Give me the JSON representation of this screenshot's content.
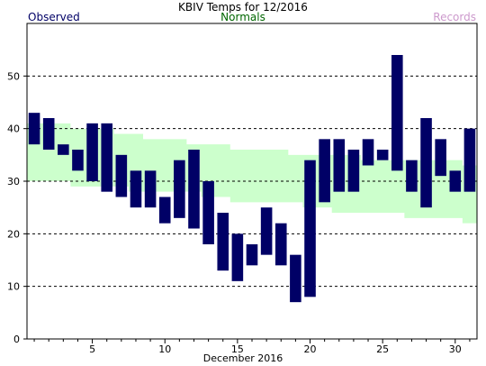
{
  "chart_data": {
    "type": "bar",
    "title": "KBIV Temps for 12/2016",
    "xlabel": "December 2016",
    "ylabel": "",
    "legend": [
      {
        "name": "Observed",
        "color": "#000066"
      },
      {
        "name": "Normals",
        "color": "#006600"
      },
      {
        "name": "Records",
        "color": "#cc99cc"
      }
    ],
    "xlim": [
      0.5,
      31.5
    ],
    "ylim": [
      0,
      60
    ],
    "xticks": [
      5,
      10,
      15,
      20,
      25,
      30
    ],
    "yticks": [
      0,
      10,
      20,
      30,
      40,
      50
    ],
    "grid": true,
    "days": [
      1,
      2,
      3,
      4,
      5,
      6,
      7,
      8,
      9,
      10,
      11,
      12,
      13,
      14,
      15,
      16,
      17,
      18,
      19,
      20,
      21,
      22,
      23,
      24,
      25,
      26,
      27,
      28,
      29,
      30,
      31
    ],
    "observed_high": [
      43,
      42,
      37,
      36,
      41,
      41,
      35,
      32,
      32,
      27,
      34,
      36,
      30,
      24,
      20,
      18,
      25,
      22,
      16,
      34,
      38,
      38,
      36,
      38,
      36,
      54,
      34,
      42,
      38,
      32,
      40
    ],
    "observed_low": [
      37,
      36,
      35,
      32,
      30,
      28,
      27,
      25,
      25,
      22,
      23,
      21,
      18,
      13,
      11,
      14,
      16,
      14,
      7,
      8,
      26,
      28,
      28,
      33,
      34,
      32,
      28,
      25,
      31,
      28,
      28
    ],
    "normal_high": [
      41,
      41,
      41,
      40,
      40,
      40,
      39,
      39,
      38,
      38,
      38,
      37,
      37,
      37,
      36,
      36,
      36,
      36,
      35,
      35,
      35,
      35,
      35,
      34,
      34,
      34,
      34,
      34,
      34,
      34,
      33
    ],
    "normal_low": [
      30,
      30,
      30,
      29,
      29,
      29,
      29,
      28,
      28,
      28,
      28,
      28,
      27,
      27,
      26,
      26,
      26,
      26,
      26,
      25,
      25,
      24,
      24,
      24,
      24,
      24,
      23,
      23,
      23,
      23,
      22
    ],
    "colors": {
      "observed": "#000066",
      "normals": "#ccffcc",
      "grid": "#000000",
      "title": "#000000",
      "legend_observed": "#000066",
      "legend_normals": "#006600",
      "legend_records": "#cc99cc"
    }
  }
}
